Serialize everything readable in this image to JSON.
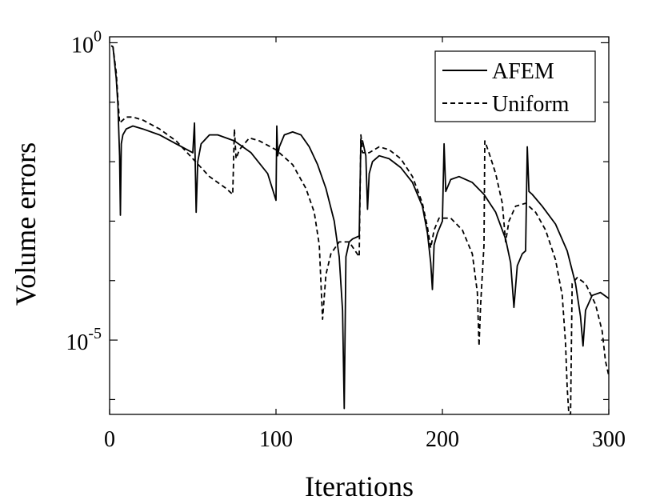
{
  "chart_data": {
    "type": "line",
    "title": "",
    "xlabel": "Iterations",
    "ylabel": "Volume errors",
    "xlim": [
      0,
      300
    ],
    "ylim_log10": [
      -6.25,
      0.1
    ],
    "yscale": "log",
    "xticks": [
      {
        "value": 0,
        "label": "0"
      },
      {
        "value": 100,
        "label": "100"
      },
      {
        "value": 200,
        "label": "200"
      },
      {
        "value": 300,
        "label": "300"
      }
    ],
    "yticks_major": [
      {
        "exp": 0,
        "base": "10",
        "sup": "0"
      },
      {
        "exp": -5,
        "base": "10",
        "sup": "-5"
      }
    ],
    "yticks_minor_exp": [
      -1,
      -2,
      -3,
      -4,
      -6
    ],
    "grid": false,
    "legend_position": "top-right",
    "series": [
      {
        "name": "AFEM",
        "style": "solid",
        "color": "#000000",
        "points": [
          [
            1,
            -0.05
          ],
          [
            2,
            -0.07
          ],
          [
            4,
            -0.6
          ],
          [
            5,
            -1.05
          ],
          [
            6,
            -1.9
          ],
          [
            6.5,
            -2.9
          ],
          [
            7,
            -1.7
          ],
          [
            8,
            -1.55
          ],
          [
            10,
            -1.45
          ],
          [
            14,
            -1.4
          ],
          [
            20,
            -1.45
          ],
          [
            30,
            -1.55
          ],
          [
            40,
            -1.7
          ],
          [
            50,
            -1.85
          ],
          [
            51,
            -1.35
          ],
          [
            52,
            -2.85
          ],
          [
            53,
            -2.0
          ],
          [
            55,
            -1.7
          ],
          [
            60,
            -1.55
          ],
          [
            65,
            -1.55
          ],
          [
            75,
            -1.65
          ],
          [
            85,
            -1.85
          ],
          [
            95,
            -2.2
          ],
          [
            100,
            -2.65
          ],
          [
            100.5,
            -1.4
          ],
          [
            101,
            -1.9
          ],
          [
            102,
            -1.75
          ],
          [
            105,
            -1.55
          ],
          [
            110,
            -1.5
          ],
          [
            115,
            -1.55
          ],
          [
            120,
            -1.75
          ],
          [
            125,
            -2.05
          ],
          [
            130,
            -2.45
          ],
          [
            135,
            -3.0
          ],
          [
            138,
            -3.6
          ],
          [
            140,
            -4.5
          ],
          [
            141,
            -6.15
          ],
          [
            142,
            -3.6
          ],
          [
            144,
            -3.35
          ],
          [
            146,
            -3.3
          ],
          [
            150,
            -3.25
          ],
          [
            151,
            -1.65
          ],
          [
            152,
            -1.65
          ],
          [
            154,
            -1.9
          ],
          [
            155,
            -2.8
          ],
          [
            156,
            -2.2
          ],
          [
            158,
            -2.0
          ],
          [
            162,
            -1.9
          ],
          [
            168,
            -1.95
          ],
          [
            175,
            -2.1
          ],
          [
            182,
            -2.35
          ],
          [
            188,
            -2.75
          ],
          [
            191,
            -3.2
          ],
          [
            193,
            -3.7
          ],
          [
            194,
            -4.15
          ],
          [
            195,
            -3.4
          ],
          [
            197,
            -3.2
          ],
          [
            200,
            -3.0
          ],
          [
            201,
            -1.7
          ],
          [
            202,
            -2.5
          ],
          [
            205,
            -2.3
          ],
          [
            210,
            -2.25
          ],
          [
            218,
            -2.35
          ],
          [
            225,
            -2.55
          ],
          [
            232,
            -2.85
          ],
          [
            238,
            -3.3
          ],
          [
            241,
            -3.7
          ],
          [
            243,
            -4.45
          ],
          [
            245,
            -3.75
          ],
          [
            248,
            -3.55
          ],
          [
            250,
            -3.5
          ],
          [
            251,
            -1.75
          ],
          [
            252,
            -2.5
          ],
          [
            254,
            -2.55
          ],
          [
            260,
            -2.75
          ],
          [
            268,
            -3.05
          ],
          [
            275,
            -3.5
          ],
          [
            280,
            -4.05
          ],
          [
            283,
            -4.6
          ],
          [
            284.5,
            -5.1
          ],
          [
            286,
            -4.5
          ],
          [
            290,
            -4.25
          ],
          [
            295,
            -4.2
          ],
          [
            300,
            -4.3
          ]
        ]
      },
      {
        "name": "Uniform",
        "style": "dashed",
        "color": "#000000",
        "points": [
          [
            1,
            -0.05
          ],
          [
            2,
            -0.07
          ],
          [
            4,
            -0.5
          ],
          [
            5,
            -0.95
          ],
          [
            6,
            -1.35
          ],
          [
            8,
            -1.3
          ],
          [
            10,
            -1.25
          ],
          [
            14,
            -1.25
          ],
          [
            20,
            -1.3
          ],
          [
            30,
            -1.45
          ],
          [
            40,
            -1.65
          ],
          [
            50,
            -1.95
          ],
          [
            60,
            -2.25
          ],
          [
            70,
            -2.45
          ],
          [
            74,
            -2.55
          ],
          [
            75,
            -1.45
          ],
          [
            76,
            -1.95
          ],
          [
            78,
            -1.8
          ],
          [
            84,
            -1.6
          ],
          [
            90,
            -1.65
          ],
          [
            100,
            -1.8
          ],
          [
            110,
            -2.05
          ],
          [
            118,
            -2.45
          ],
          [
            123,
            -2.85
          ],
          [
            126,
            -3.4
          ],
          [
            128,
            -4.65
          ],
          [
            130,
            -3.9
          ],
          [
            133,
            -3.55
          ],
          [
            138,
            -3.35
          ],
          [
            144,
            -3.35
          ],
          [
            150,
            -3.6
          ],
          [
            151,
            -1.55
          ],
          [
            152,
            -1.85
          ],
          [
            156,
            -1.85
          ],
          [
            162,
            -1.75
          ],
          [
            168,
            -1.8
          ],
          [
            175,
            -1.95
          ],
          [
            182,
            -2.25
          ],
          [
            188,
            -2.7
          ],
          [
            191,
            -3.1
          ],
          [
            193,
            -3.45
          ],
          [
            195,
            -3.15
          ],
          [
            198,
            -2.95
          ],
          [
            205,
            -2.95
          ],
          [
            212,
            -3.15
          ],
          [
            218,
            -3.55
          ],
          [
            221,
            -4.2
          ],
          [
            222,
            -5.1
          ],
          [
            223,
            -4.4
          ],
          [
            225,
            -3.4
          ],
          [
            225.5,
            -1.65
          ],
          [
            228,
            -1.85
          ],
          [
            232,
            -2.2
          ],
          [
            236,
            -2.7
          ],
          [
            238,
            -3.35
          ],
          [
            240,
            -3.0
          ],
          [
            244,
            -2.75
          ],
          [
            250,
            -2.7
          ],
          [
            256,
            -2.85
          ],
          [
            262,
            -3.15
          ],
          [
            268,
            -3.65
          ],
          [
            272,
            -4.25
          ],
          [
            274,
            -5.05
          ],
          [
            275,
            -5.8
          ],
          [
            276,
            -6.5
          ],
          [
            277,
            -6.5
          ],
          [
            278,
            -4.05
          ],
          [
            281,
            -3.95
          ],
          [
            286,
            -4.05
          ],
          [
            292,
            -4.4
          ],
          [
            296,
            -4.85
          ],
          [
            298,
            -5.35
          ],
          [
            300,
            -5.6
          ]
        ]
      }
    ]
  }
}
